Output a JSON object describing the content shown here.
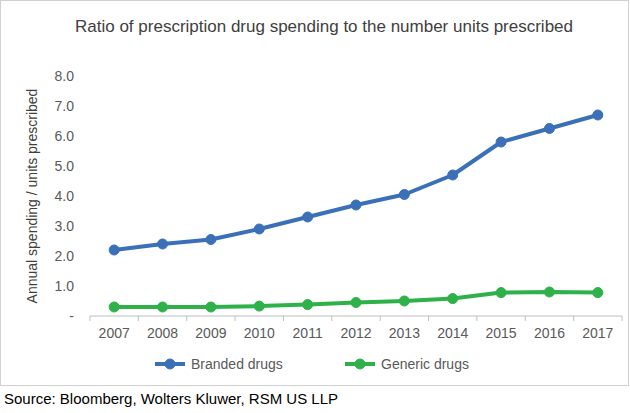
{
  "chart_data": {
    "type": "line",
    "title": "Ratio of prescription drug spending to the number units prescribed",
    "y_label": "Annual spending / units prescribed",
    "source": "Source: Bloomberg, Wolters Kluwer, RSM US LLP",
    "categories": [
      "2007",
      "2008",
      "2009",
      "2010",
      "2011",
      "2012",
      "2013",
      "2014",
      "2015",
      "2016",
      "2017"
    ],
    "series": [
      {
        "name": "Branded drugs",
        "color": "#3a70b8",
        "marker": "circle",
        "values": [
          2.2,
          2.4,
          2.55,
          2.9,
          3.3,
          3.7,
          4.05,
          4.7,
          5.8,
          6.25,
          6.7
        ]
      },
      {
        "name": "Generic drugs",
        "color": "#2fb14a",
        "marker": "circle",
        "values": [
          0.3,
          0.3,
          0.3,
          0.33,
          0.38,
          0.45,
          0.5,
          0.58,
          0.78,
          0.8,
          0.78
        ]
      }
    ],
    "ylim": [
      0,
      8
    ],
    "yticks": [
      {
        "value": 0,
        "label": "-"
      },
      {
        "value": 1,
        "label": "1.0"
      },
      {
        "value": 2,
        "label": "2.0"
      },
      {
        "value": 3,
        "label": "3.0"
      },
      {
        "value": 4,
        "label": "4.0"
      },
      {
        "value": 5,
        "label": "5.0"
      },
      {
        "value": 6,
        "label": "6.0"
      },
      {
        "value": 7,
        "label": "7.0"
      },
      {
        "value": 8,
        "label": "8.0"
      }
    ],
    "grid": false,
    "legend": "bottom"
  }
}
